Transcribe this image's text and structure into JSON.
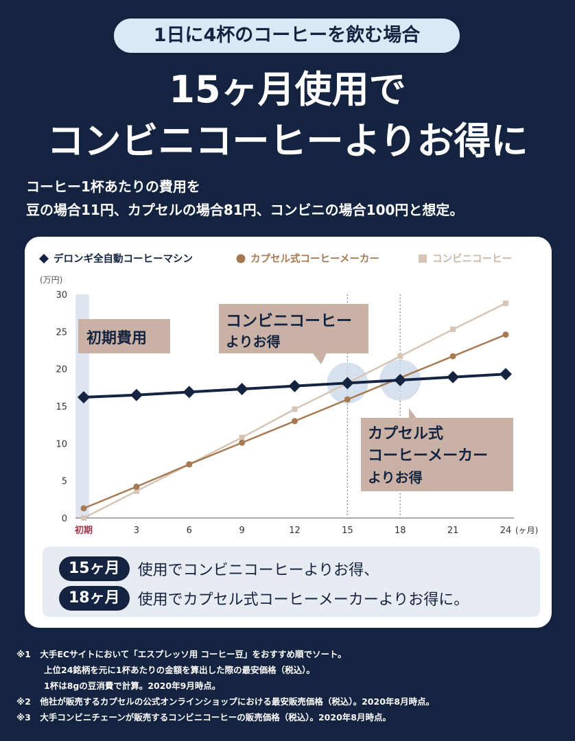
{
  "header": {
    "pill": "1日に4杯のコーヒーを飲む場合",
    "title_line1": "15ヶ月使用で",
    "title_line2": "コンビニコーヒーよりお得に"
  },
  "description": {
    "line1": "コーヒー1杯あたりの費用を",
    "line2": "豆の場合11円、カプセルの場合81円、コンビニの場合100円と想定。"
  },
  "chart_data": {
    "type": "line",
    "ylabel": "(万円)",
    "x_unit": "(ヶ月)",
    "x": [
      "初期",
      "3",
      "6",
      "9",
      "12",
      "15",
      "18",
      "21",
      "24"
    ],
    "ylim": [
      0,
      30
    ],
    "yticks": [
      "0",
      "5",
      "10",
      "15",
      "20",
      "25",
      "30"
    ],
    "series": [
      {
        "name": "デロンギ全自動コーヒーマシン",
        "marker": "diamond",
        "color": "#14233f",
        "values": [
          16.2,
          16.5,
          16.9,
          17.3,
          17.7,
          18.1,
          18.5,
          18.9,
          19.3
        ]
      },
      {
        "name": "カプセル式コーヒーメーカー",
        "marker": "circle",
        "color": "#a57a52",
        "values": [
          1.3,
          4.2,
          7.2,
          10.1,
          13.0,
          15.9,
          18.8,
          21.7,
          24.6
        ]
      },
      {
        "name": "コンビニコーヒー",
        "marker": "square",
        "color": "#d6c4b4",
        "values": [
          0,
          3.6,
          7.2,
          10.8,
          14.6,
          18.1,
          21.7,
          25.3,
          28.8
        ]
      }
    ],
    "crossover_months": [
      "15",
      "18"
    ],
    "annotations": {
      "initial": "初期費用",
      "conv_line1": "コンビニコーヒー",
      "conv_line2": "よりお得",
      "cap_line1": "カプセル式",
      "cap_line2": "コーヒーメーカー",
      "cap_line3": "よりお得"
    },
    "grid": false,
    "legend_position": "top-left"
  },
  "summary": {
    "badge1": "15ヶ月",
    "text1": "使用でコンビニコーヒーよりお得、",
    "badge2": "18ヶ月",
    "text2": "使用でカプセル式コーヒーメーカーよりお得に。"
  },
  "notes": [
    {
      "mark": "※1",
      "text": "大手ECサイトにおいて「エスプレッソ用 コーヒー豆」をおすすめ順でソート。"
    },
    {
      "mark": "",
      "text": "上位24銘柄を元に1杯あたりの金額を算出した際の最安価格（税込）。"
    },
    {
      "mark": "",
      "text": "1杯は8gの豆消費で計算。2020年9月時点。"
    },
    {
      "mark": "※2",
      "text": "他社が販売するカプセルの公式オンラインショップにおける最安販売価格（税込）。2020年8月時点。"
    },
    {
      "mark": "※3",
      "text": "大手コンビニチェーンが販売するコンビニコーヒーの販売価格（税込）。2020年8月時点。"
    }
  ]
}
